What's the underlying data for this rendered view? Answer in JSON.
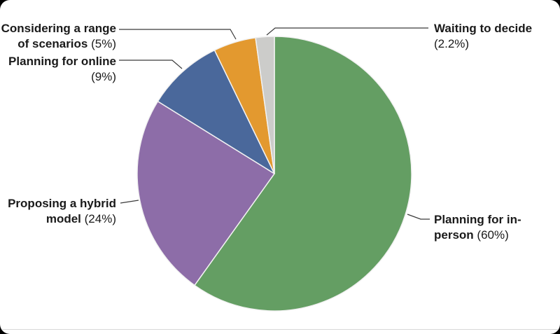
{
  "chart_data": {
    "type": "pie",
    "title": "",
    "legend_position": "none",
    "label_style": "external-callouts",
    "callout_line_color": "#3a3a3a",
    "slice_separator_color": "#f2f2f2",
    "background_color": "#ffffff",
    "slices": [
      {
        "id": "planning-for-in-person",
        "label": "Planning for in-person",
        "display": "Planning for in-person (60%)",
        "value": 60,
        "color": "#649E63",
        "lines": {
          "l1": "Planning for in-",
          "l2b": "person ",
          "l2p": "(60%)"
        }
      },
      {
        "id": "proposing-a-hybrid-model",
        "label": "Proposing a hybrid model",
        "display": "Proposing a hybrid model (24%)",
        "value": 24,
        "color": "#8D6DA8",
        "lines": {
          "l1": "Proposing a hybrid",
          "l2b": "model ",
          "l2p": "(24%)"
        }
      },
      {
        "id": "planning-for-online",
        "label": "Planning for online",
        "display": "Planning for online (9%)",
        "value": 9,
        "color": "#4A689B",
        "lines": {
          "l1": "Planning for online",
          "l2b": "",
          "l2p": "(9%)"
        }
      },
      {
        "id": "considering-a-range-of-scenarios",
        "label": "Considering a range of scenarios",
        "display": "Considering a range of scenarios (5%)",
        "value": 5,
        "color": "#E3992F",
        "lines": {
          "l1": "Considering a range",
          "l2b": "of scenarios ",
          "l2p": "(5%)"
        }
      },
      {
        "id": "waiting-to-decide",
        "label": "Waiting to decide",
        "display": "Waiting to decide (2.2%)",
        "value": 2.2,
        "color": "#CCCCCA",
        "lines": {
          "l1": "Waiting to decide",
          "l2b": "",
          "l2p": "(2.2%)"
        }
      }
    ]
  }
}
